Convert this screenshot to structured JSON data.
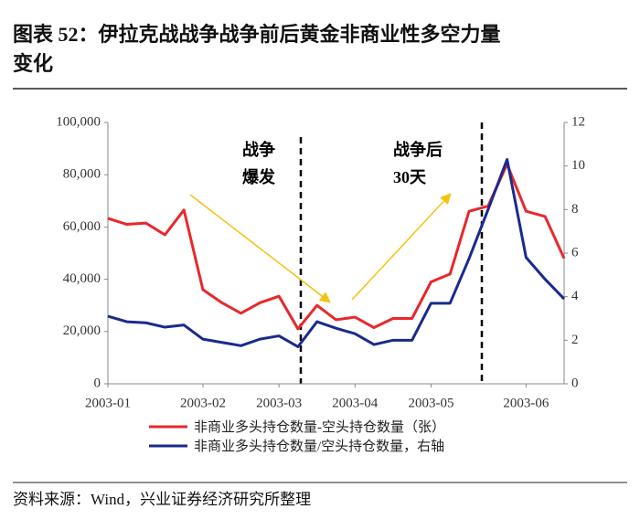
{
  "chart_data": {
    "type": "line",
    "title": "图表 52：伊拉克战战争战争前后黄金非商业性多空力量变化",
    "categories": [
      "2003-01",
      null,
      null,
      null,
      null,
      "2003-02",
      null,
      null,
      null,
      "2003-03",
      null,
      null,
      null,
      "2003-04",
      null,
      null,
      null,
      "2003-05",
      null,
      null,
      null,
      null,
      "2003-06",
      null,
      null
    ],
    "series": [
      {
        "name": "非商业多头持仓数量-空头持仓数量（张）",
        "color": "#e8282b",
        "values": [
          63300,
          61000,
          61500,
          57000,
          66500,
          36000,
          31000,
          27000,
          31000,
          33500,
          21000,
          30000,
          24500,
          25500,
          21500,
          25000,
          25000,
          39000,
          42000,
          66000,
          68000,
          84000,
          66000,
          64000,
          48000
        ]
      },
      {
        "name": "非商业多头持仓数量/空头持仓数量，右轴",
        "color": "#1a2a8c",
        "axis": "y2",
        "values": [
          3.1,
          2.85,
          2.8,
          2.6,
          2.7,
          2.05,
          1.9,
          1.75,
          2.05,
          2.2,
          1.7,
          2.85,
          2.55,
          2.3,
          1.8,
          2.0,
          2.0,
          3.7,
          3.7,
          5.75,
          8.0,
          10.3,
          5.8,
          4.8,
          3.9
        ]
      }
    ],
    "ylim": [
      0,
      100000
    ],
    "yticks": [
      0,
      {
        "value": 20000,
        "label": "20,000"
      },
      {
        "value": 40000,
        "label": "40,000"
      },
      {
        "value": 60000,
        "label": "60,000"
      },
      {
        "value": 80000,
        "label": "80,000"
      },
      {
        "value": 100000,
        "label": "100,000"
      }
    ],
    "y2lim": [
      0,
      12
    ],
    "y2ticks": [
      0,
      2,
      4,
      6,
      8,
      10,
      12
    ],
    "annotations": [
      "战争",
      "爆发",
      "战争后",
      "30天"
    ],
    "source": "资料来源：Wind，兴业证券经济研究所整理"
  }
}
